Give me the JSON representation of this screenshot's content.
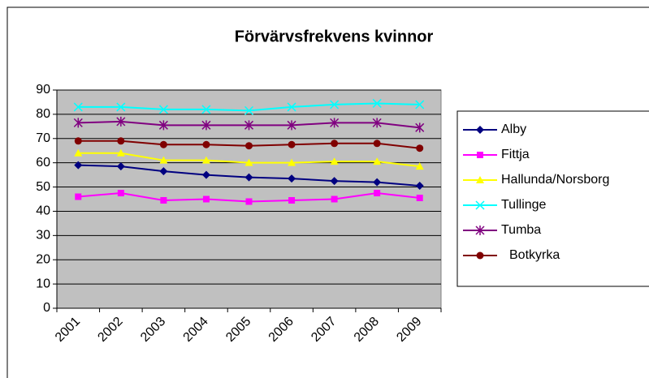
{
  "chart_data": {
    "type": "line",
    "title": "Förvärvsfrekvens kvinnor",
    "categories": [
      "2001",
      "2002",
      "2003",
      "2004",
      "2005",
      "2006",
      "2007",
      "2008",
      "2009"
    ],
    "ylim": [
      0,
      90
    ],
    "yticks": [
      0,
      10,
      20,
      30,
      40,
      50,
      60,
      70,
      80,
      90
    ],
    "grid": true,
    "legend": "right",
    "series": [
      {
        "name": "Alby",
        "color": "#000080",
        "marker": "diamond",
        "values": [
          59,
          58.5,
          56.5,
          55,
          54,
          53.5,
          52.5,
          52,
          50.5
        ]
      },
      {
        "name": "Fittja",
        "color": "#ff00ff",
        "marker": "square",
        "values": [
          46,
          47.5,
          44.5,
          45,
          44,
          44.5,
          45,
          47.5,
          45.5
        ]
      },
      {
        "name": "Hallunda/Norsborg",
        "color": "#ffff00",
        "marker": "triangle",
        "values": [
          64,
          64,
          61,
          61,
          60,
          60,
          60.5,
          60.5,
          58.5
        ]
      },
      {
        "name": "Tullinge",
        "color": "#00ffff",
        "marker": "x",
        "values": [
          83,
          83,
          82,
          82,
          81.5,
          83,
          84,
          84.5,
          84
        ]
      },
      {
        "name": "Tumba",
        "color": "#800080",
        "marker": "asterisk",
        "values": [
          76.5,
          77,
          75.5,
          75.5,
          75.5,
          75.5,
          76.5,
          76.5,
          74.5
        ]
      },
      {
        "name": "Botkyrka",
        "color": "#800000",
        "marker": "circle",
        "values": [
          69,
          69,
          67.5,
          67.5,
          67,
          67.5,
          68,
          68,
          66
        ]
      }
    ]
  }
}
